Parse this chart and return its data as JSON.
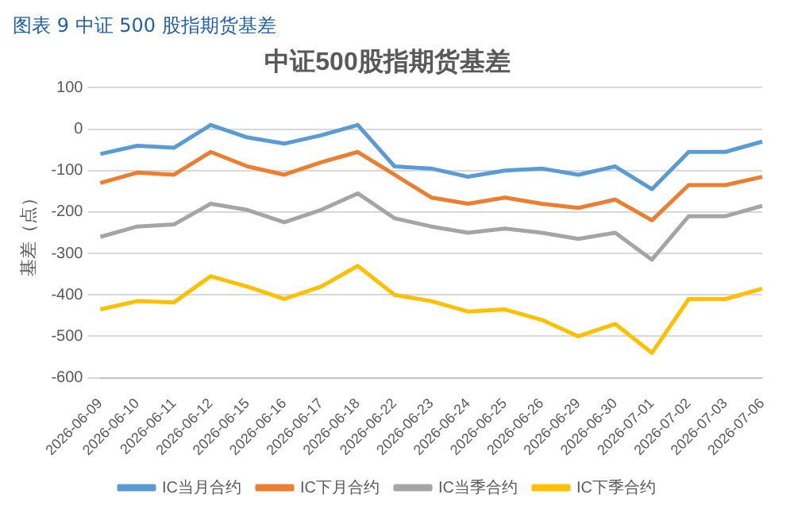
{
  "chart_data": {
    "type": "line",
    "title": "图表 9  中证 500 股指期货基差",
    "subtitle": "中证500股指期货基差",
    "ylabel": "基差（点）",
    "categories": [
      "2026-06-09",
      "2026-06-10",
      "2026-06-11",
      "2026-06-12",
      "2026-06-15",
      "2026-06-16",
      "2026-06-17",
      "2026-06-18",
      "2026-06-22",
      "2026-06-23",
      "2026-06-24",
      "2026-06-25",
      "2026-06-26",
      "2026-06-29",
      "2026-06-30",
      "2026-07-01",
      "2026-07-02",
      "2026-07-03",
      "2026-07-06"
    ],
    "series": [
      {
        "name": "IC当月合约",
        "color": "#5b9bd5",
        "values": [
          -60,
          -40,
          -45,
          10,
          -20,
          -35,
          -15,
          10,
          -90,
          -95,
          -115,
          -100,
          -95,
          -110,
          -90,
          -145,
          -55,
          -55,
          -30
        ]
      },
      {
        "name": "IC下月合约",
        "color": "#ed7d31",
        "values": [
          -130,
          -105,
          -110,
          -55,
          -90,
          -110,
          -80,
          -55,
          -110,
          -165,
          -180,
          -165,
          -180,
          -190,
          -170,
          -220,
          -135,
          -135,
          -115
        ]
      },
      {
        "name": "IC当季合约",
        "color": "#a5a5a5",
        "values": [
          -260,
          -235,
          -230,
          -180,
          -195,
          -225,
          -195,
          -155,
          -215,
          -235,
          -250,
          -240,
          -250,
          -265,
          -250,
          -315,
          -210,
          -210,
          -185
        ]
      },
      {
        "name": "IC下季合约",
        "color": "#ffc000",
        "values": [
          -435,
          -415,
          -418,
          -355,
          -380,
          -410,
          -380,
          -330,
          -400,
          -415,
          -440,
          -435,
          -460,
          -500,
          -470,
          -540,
          -410,
          -410,
          -385
        ]
      }
    ],
    "ylim": [
      -600,
      100
    ],
    "yticks": [
      -600,
      -500,
      -400,
      -300,
      -200,
      -100,
      0,
      100
    ],
    "grid": "y",
    "legend": "bottom",
    "marker": "none",
    "line_style": "solid"
  }
}
